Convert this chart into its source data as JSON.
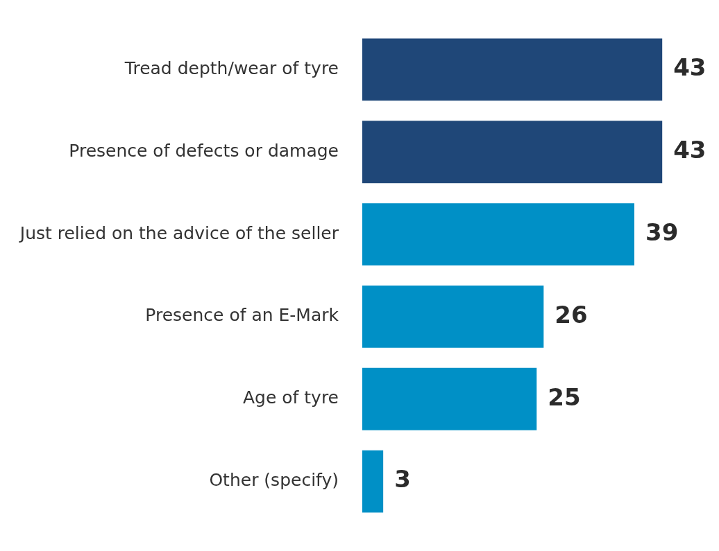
{
  "chart_data": {
    "type": "bar",
    "orientation": "horizontal",
    "categories": [
      "Tread depth/wear of tyre",
      "Presence of defects or damage",
      "Just relied on the advice of the seller",
      "Presence of an E-Mark",
      "Age of tyre",
      "Other (specify)"
    ],
    "values": [
      43,
      43,
      39,
      26,
      25,
      3
    ],
    "colors": [
      "#1f4778",
      "#1f4778",
      "#0090c6",
      "#0090c6",
      "#0090c6",
      "#0090c6"
    ],
    "data_labels": true,
    "legend": false
  }
}
